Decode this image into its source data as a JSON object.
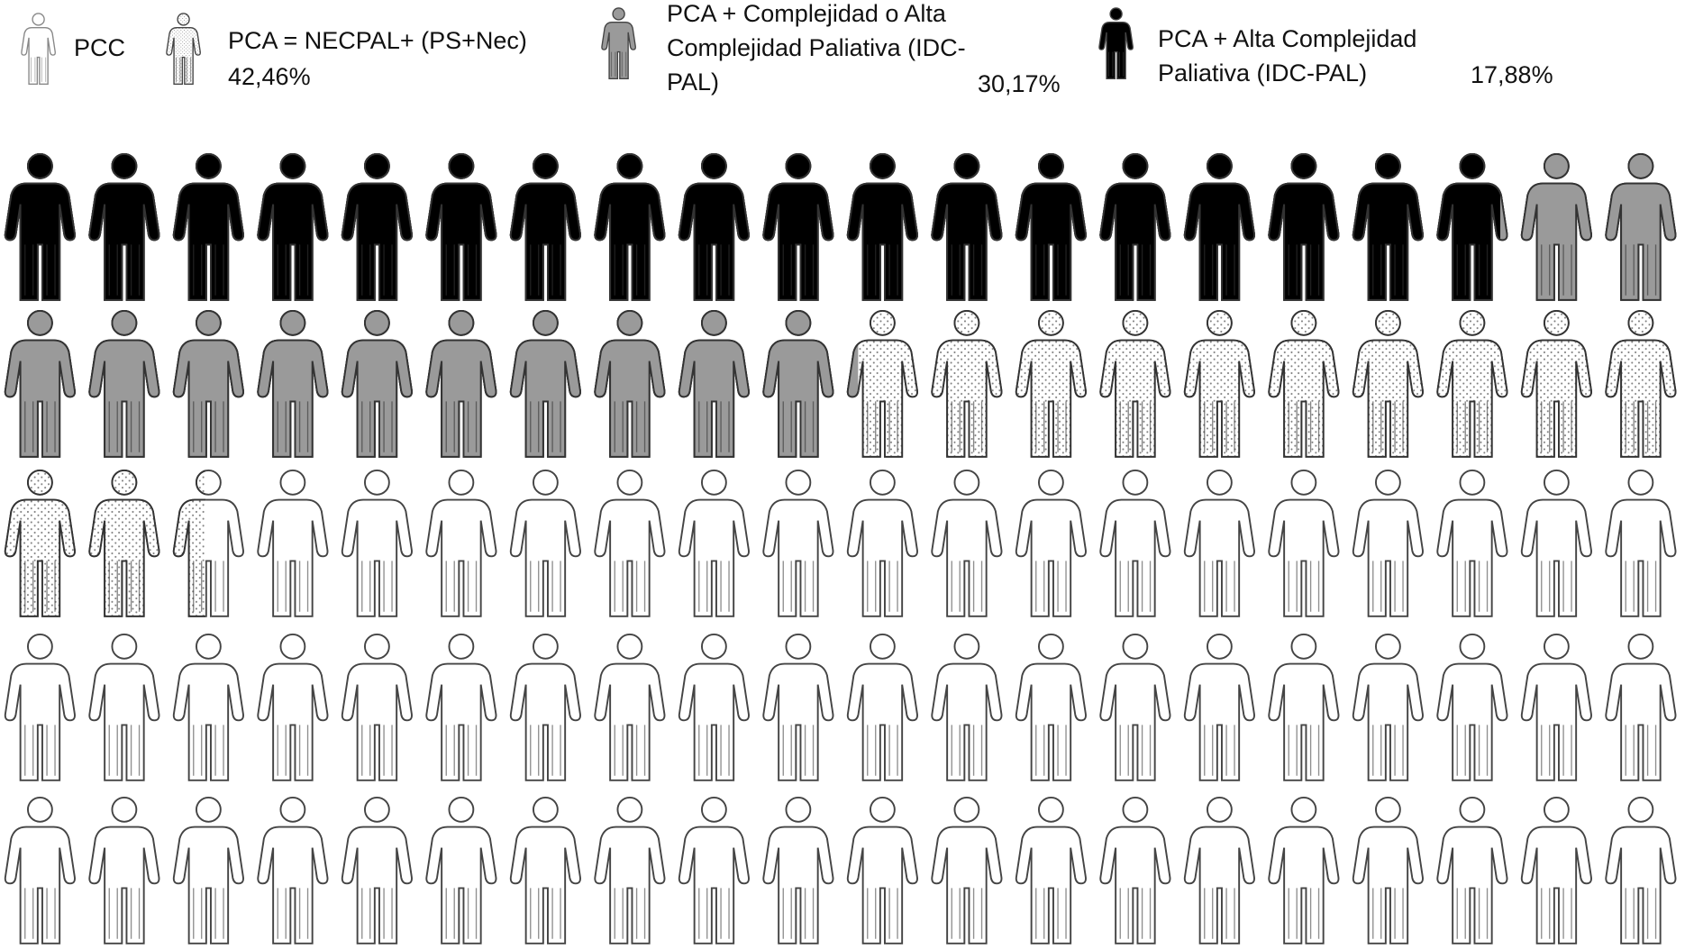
{
  "chart_data": {
    "type": "pictogram",
    "series": [
      {
        "name": "PCC",
        "color": "#ffffff"
      },
      {
        "name": "PCA = NECPAL+ (PS+Nec)",
        "color": "#7f7f7f",
        "pattern": "dots",
        "values": [
          42.46
        ],
        "value_labels": [
          "42,46%"
        ]
      },
      {
        "name": "PCA + Complejidad o Alta Complejidad Paliativa (IDC-PAL)",
        "color": "#9a9a9a",
        "values": [
          30.17
        ],
        "value_labels": [
          "30,17%"
        ]
      },
      {
        "name": "PCA + Alta Complejidad Paliativa (IDC-PAL)",
        "color": "#000000",
        "values": [
          17.88
        ],
        "value_labels": [
          "17,88%"
        ]
      }
    ]
  }
}
